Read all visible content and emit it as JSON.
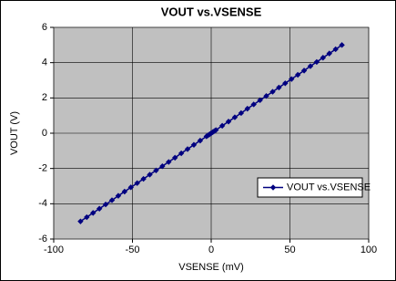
{
  "chart_data": {
    "type": "line",
    "title": "VOUT vs.VSENSE",
    "x_label": "VSENSE (mV)",
    "y_label": "VOUT (V)",
    "x": [
      -83,
      -79,
      -75,
      -71,
      -67,
      -63,
      -59,
      -55,
      -51,
      -47,
      -43,
      -39,
      -35,
      -31,
      -27,
      -23,
      -19,
      -15,
      -11,
      -7,
      -3,
      -2,
      -1,
      0,
      1,
      2,
      3,
      7,
      11,
      15,
      19,
      23,
      27,
      31,
      35,
      39,
      43,
      47,
      51,
      55,
      59,
      63,
      67,
      71,
      75,
      79,
      83
    ],
    "series": [
      {
        "name": "VOUT vs.VSENSE",
        "color": "#000080",
        "values": [
          -5.0,
          -4.76,
          -4.52,
          -4.28,
          -4.04,
          -3.8,
          -3.55,
          -3.31,
          -3.07,
          -2.83,
          -2.59,
          -2.35,
          -2.11,
          -1.87,
          -1.63,
          -1.39,
          -1.14,
          -0.9,
          -0.66,
          -0.42,
          -0.18,
          -0.12,
          -0.06,
          0,
          0.06,
          0.12,
          0.18,
          0.42,
          0.66,
          0.9,
          1.14,
          1.39,
          1.63,
          1.87,
          2.11,
          2.35,
          2.59,
          2.83,
          3.07,
          3.31,
          3.55,
          3.8,
          4.04,
          4.28,
          4.52,
          4.76,
          5.0
        ]
      }
    ],
    "xlim": [
      -100,
      100
    ],
    "xticks": [
      -100,
      -50,
      0,
      50,
      100
    ],
    "ylim": [
      -6,
      6
    ],
    "yticks": [
      -6,
      -4,
      -2,
      0,
      2,
      4,
      6
    ],
    "grid": true,
    "legend": "right"
  }
}
